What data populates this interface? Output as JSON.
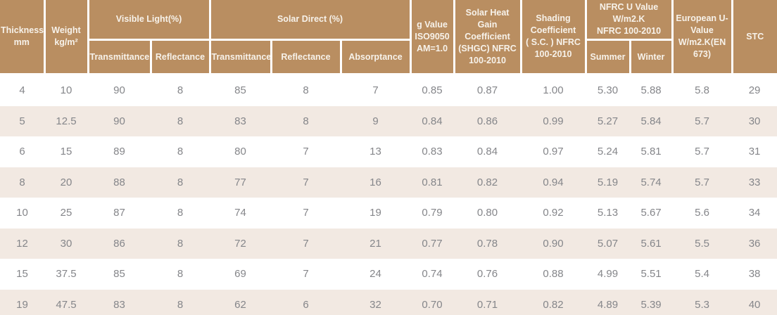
{
  "colors": {
    "header_bg": "#b98e61",
    "header_text": "#f7f2ea",
    "row_alt_bg": "#f2e9e2",
    "row_bg": "#ffffff",
    "cell_text": "#85868a",
    "bottom_bar": "#b98e61"
  },
  "table": {
    "header": {
      "thickness": "Thickness\nmm",
      "weight": "Weight\nkg/m²",
      "visible_light": "Visible Light(%)",
      "vl_transmittance": "Transmittance",
      "vl_reflectance": "Reflectance",
      "solar_direct": "Solar  Direct (%)",
      "sd_transmittance": "Transmittance",
      "sd_reflectance": "Reflectance",
      "sd_absorptance": "Absorptance",
      "g_value": "g Value\nISO9050\nAM=1.0",
      "shgc": "Solar Heat Gain\nCoefficient\n(SHGC) NFRC\n100-2010",
      "sc": "Shading\nCoefficient\n( S.C. ) NFRC\n100-2010",
      "nfrc_u": "NFRC U Value\nW/m2.K\nNFRC 100-2010",
      "u_summer": "Summer",
      "u_winter": "Winter",
      "eu_u": "European U-\nValue\nW/m2.K(EN\n673)",
      "stc": "STC"
    },
    "column_keys": [
      "thickness",
      "weight",
      "vl-transmittance",
      "vl-reflectance",
      "sd-transmittance",
      "sd-reflectance",
      "sd-absorptance",
      "g-value",
      "shgc",
      "sc",
      "u-summer",
      "u-winter",
      "eu-u-value",
      "stc"
    ],
    "rows": [
      [
        "4",
        "10",
        "90",
        "8",
        "85",
        "8",
        "7",
        "0.85",
        "0.87",
        "1.00",
        "5.30",
        "5.88",
        "5.8",
        "29"
      ],
      [
        "5",
        "12.5",
        "90",
        "8",
        "83",
        "8",
        "9",
        "0.84",
        "0.86",
        "0.99",
        "5.27",
        "5.84",
        "5.7",
        "30"
      ],
      [
        "6",
        "15",
        "89",
        "8",
        "80",
        "7",
        "13",
        "0.83",
        "0.84",
        "0.97",
        "5.24",
        "5.81",
        "5.7",
        "31"
      ],
      [
        "8",
        "20",
        "88",
        "8",
        "77",
        "7",
        "16",
        "0.81",
        "0.82",
        "0.94",
        "5.19",
        "5.74",
        "5.7",
        "33"
      ],
      [
        "10",
        "25",
        "87",
        "8",
        "74",
        "7",
        "19",
        "0.79",
        "0.80",
        "0.92",
        "5.13",
        "5.67",
        "5.6",
        "34"
      ],
      [
        "12",
        "30",
        "86",
        "8",
        "72",
        "7",
        "21",
        "0.77",
        "0.78",
        "0.90",
        "5.07",
        "5.61",
        "5.5",
        "36"
      ],
      [
        "15",
        "37.5",
        "85",
        "8",
        "69",
        "7",
        "24",
        "0.74",
        "0.76",
        "0.88",
        "4.99",
        "5.51",
        "5.4",
        "38"
      ],
      [
        "19",
        "47.5",
        "83",
        "8",
        "62",
        "6",
        "32",
        "0.70",
        "0.71",
        "0.82",
        "4.89",
        "5.39",
        "5.3",
        "40"
      ]
    ]
  }
}
